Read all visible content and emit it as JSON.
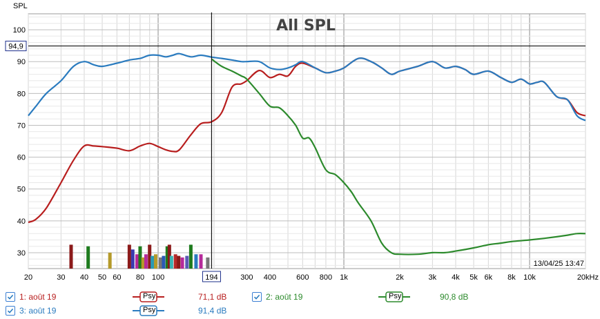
{
  "chart_data": {
    "type": "line",
    "title": "All SPL",
    "ylabel": "SPL",
    "xlabel": "",
    "x_scale": "log",
    "xlim": [
      20,
      20000
    ],
    "ylim": [
      25,
      105
    ],
    "x_tick_labels": [
      "20",
      "30",
      "40",
      "50",
      "60",
      "80",
      "100",
      "194",
      "300",
      "400",
      "600",
      "800",
      "1k",
      "2k",
      "3k",
      "4k",
      "5k",
      "6k",
      "8k",
      "10k",
      "20kHz"
    ],
    "y_tick_labels": [
      "30",
      "40",
      "50",
      "60",
      "70",
      "80",
      "90",
      "100"
    ],
    "cursor": {
      "x_label": "194",
      "y_label": "94,9"
    },
    "timestamp": "13/04/25 13:47",
    "series": [
      {
        "name": "1: août 19",
        "color": "#b81e1e",
        "x": [
          20,
          22,
          25,
          30,
          35,
          40,
          45,
          50,
          60,
          70,
          80,
          90,
          100,
          110,
          120,
          130,
          150,
          170,
          194,
          220,
          250,
          280,
          300,
          350,
          400,
          450,
          500,
          550,
          600,
          700,
          800,
          900,
          1000,
          1200,
          1400,
          1600,
          1800,
          2000,
          2500,
          3000,
          3500,
          4000,
          4500,
          5000,
          6000,
          7000,
          8000,
          9000,
          10000,
          11000,
          12000,
          14000,
          16000,
          18000,
          20000
        ],
        "y": [
          39.5,
          40.5,
          44,
          52,
          59,
          63.5,
          63.5,
          63.3,
          62.8,
          62,
          63.5,
          64.3,
          63.3,
          62.3,
          61.8,
          62.3,
          67,
          70.5,
          71.1,
          74,
          82,
          83,
          84,
          87.2,
          85,
          86,
          85.5,
          88.5,
          89.5,
          88,
          86.5,
          87,
          88,
          91,
          90,
          88,
          86,
          87,
          88.5,
          90,
          88,
          88.5,
          87.5,
          86,
          87,
          85,
          83.5,
          84.5,
          83,
          83.5,
          83.5,
          79,
          78,
          74,
          73
        ]
      },
      {
        "name": "2: août 19",
        "color": "#2c8a2c",
        "x": [
          194,
          220,
          250,
          280,
          300,
          350,
          400,
          450,
          500,
          550,
          600,
          650,
          700,
          800,
          900,
          1000,
          1100,
          1200,
          1400,
          1600,
          1800,
          2000,
          2500,
          3000,
          3500,
          4000,
          5000,
          6000,
          7000,
          8000,
          10000,
          12000,
          14000,
          16000,
          18000,
          20000
        ],
        "y": [
          90.8,
          88.5,
          87,
          85.5,
          84.5,
          80,
          76,
          75.5,
          73,
          70,
          66,
          66,
          63,
          56,
          54.5,
          52,
          49,
          45.5,
          40,
          33,
          30,
          29.5,
          29.5,
          30,
          30,
          30.5,
          31.5,
          32.5,
          33,
          33.5,
          34,
          34.5,
          35,
          35.5,
          36,
          36
        ]
      },
      {
        "name": "3: août 19",
        "color": "#2a7bbf",
        "x": [
          20,
          22,
          25,
          30,
          35,
          40,
          45,
          50,
          60,
          70,
          80,
          90,
          100,
          110,
          120,
          130,
          150,
          170,
          194,
          220,
          250,
          280,
          300,
          350,
          400,
          450,
          500,
          550,
          600,
          700,
          800,
          900,
          1000,
          1200,
          1400,
          1600,
          1800,
          2000,
          2500,
          3000,
          3500,
          4000,
          4500,
          5000,
          6000,
          7000,
          8000,
          9000,
          10000,
          11000,
          12000,
          14000,
          16000,
          18000,
          20000
        ],
        "y": [
          73,
          76,
          80,
          84,
          88.5,
          90,
          89,
          88.5,
          89.5,
          90.5,
          91,
          92,
          92,
          91.5,
          92,
          92.5,
          91.5,
          92,
          91.4,
          91,
          90.5,
          90,
          90,
          90,
          88,
          87.5,
          88,
          89,
          90,
          88,
          86.5,
          87,
          88,
          91,
          90,
          88,
          86,
          87,
          88.5,
          90,
          88,
          88.5,
          87.5,
          86,
          87,
          85,
          83.5,
          84.5,
          83,
          83.5,
          83.5,
          79,
          78,
          73,
          71.5
        ]
      }
    ],
    "bars": {
      "note": "bottom markers",
      "colors": [
        "#8b1a1a",
        "#1e7b1e",
        "#b59a2a",
        "#8b1a1a",
        "#3a3ab0",
        "#b52a9a",
        "#1e7b1e",
        "#b59a2a",
        "#b52a9a",
        "#8b1a1a",
        "#2a9ab5",
        "#b59a2a",
        "#777777",
        "#2a5ab5",
        "#1e7b1e",
        "#8b1a1a",
        "#3ab5b5",
        "#b52a2a",
        "#8b1a1a",
        "#b52a9a",
        "#5a5ab5",
        "#1e7b1e",
        "#2a7bbf",
        "#b52a9a",
        "#777777"
      ],
      "x": [
        34,
        42,
        55,
        70,
        73,
        77,
        80,
        83,
        86,
        90,
        93,
        97,
        103,
        107,
        112,
        115,
        118,
        124,
        129,
        135,
        143,
        150,
        160,
        170,
        185
      ],
      "y": [
        32.5,
        32,
        30,
        32.5,
        31,
        29.5,
        32,
        28.5,
        29.5,
        32.5,
        29,
        29.5,
        28.5,
        29,
        32,
        32.5,
        29,
        29.5,
        29,
        28.5,
        29,
        32.5,
        29.5,
        29.5,
        28.5
      ]
    }
  },
  "legend": {
    "items": [
      {
        "label": "1: août 19",
        "value": "71,1 dB",
        "color": "#b81e1e"
      },
      {
        "label": "2: août 19",
        "value": "90,8 dB",
        "color": "#2c8a2c"
      },
      {
        "label": "3: août 19",
        "value": "91,4 dB",
        "color": "#2a7bbf"
      }
    ],
    "psy_label": "Psy"
  }
}
